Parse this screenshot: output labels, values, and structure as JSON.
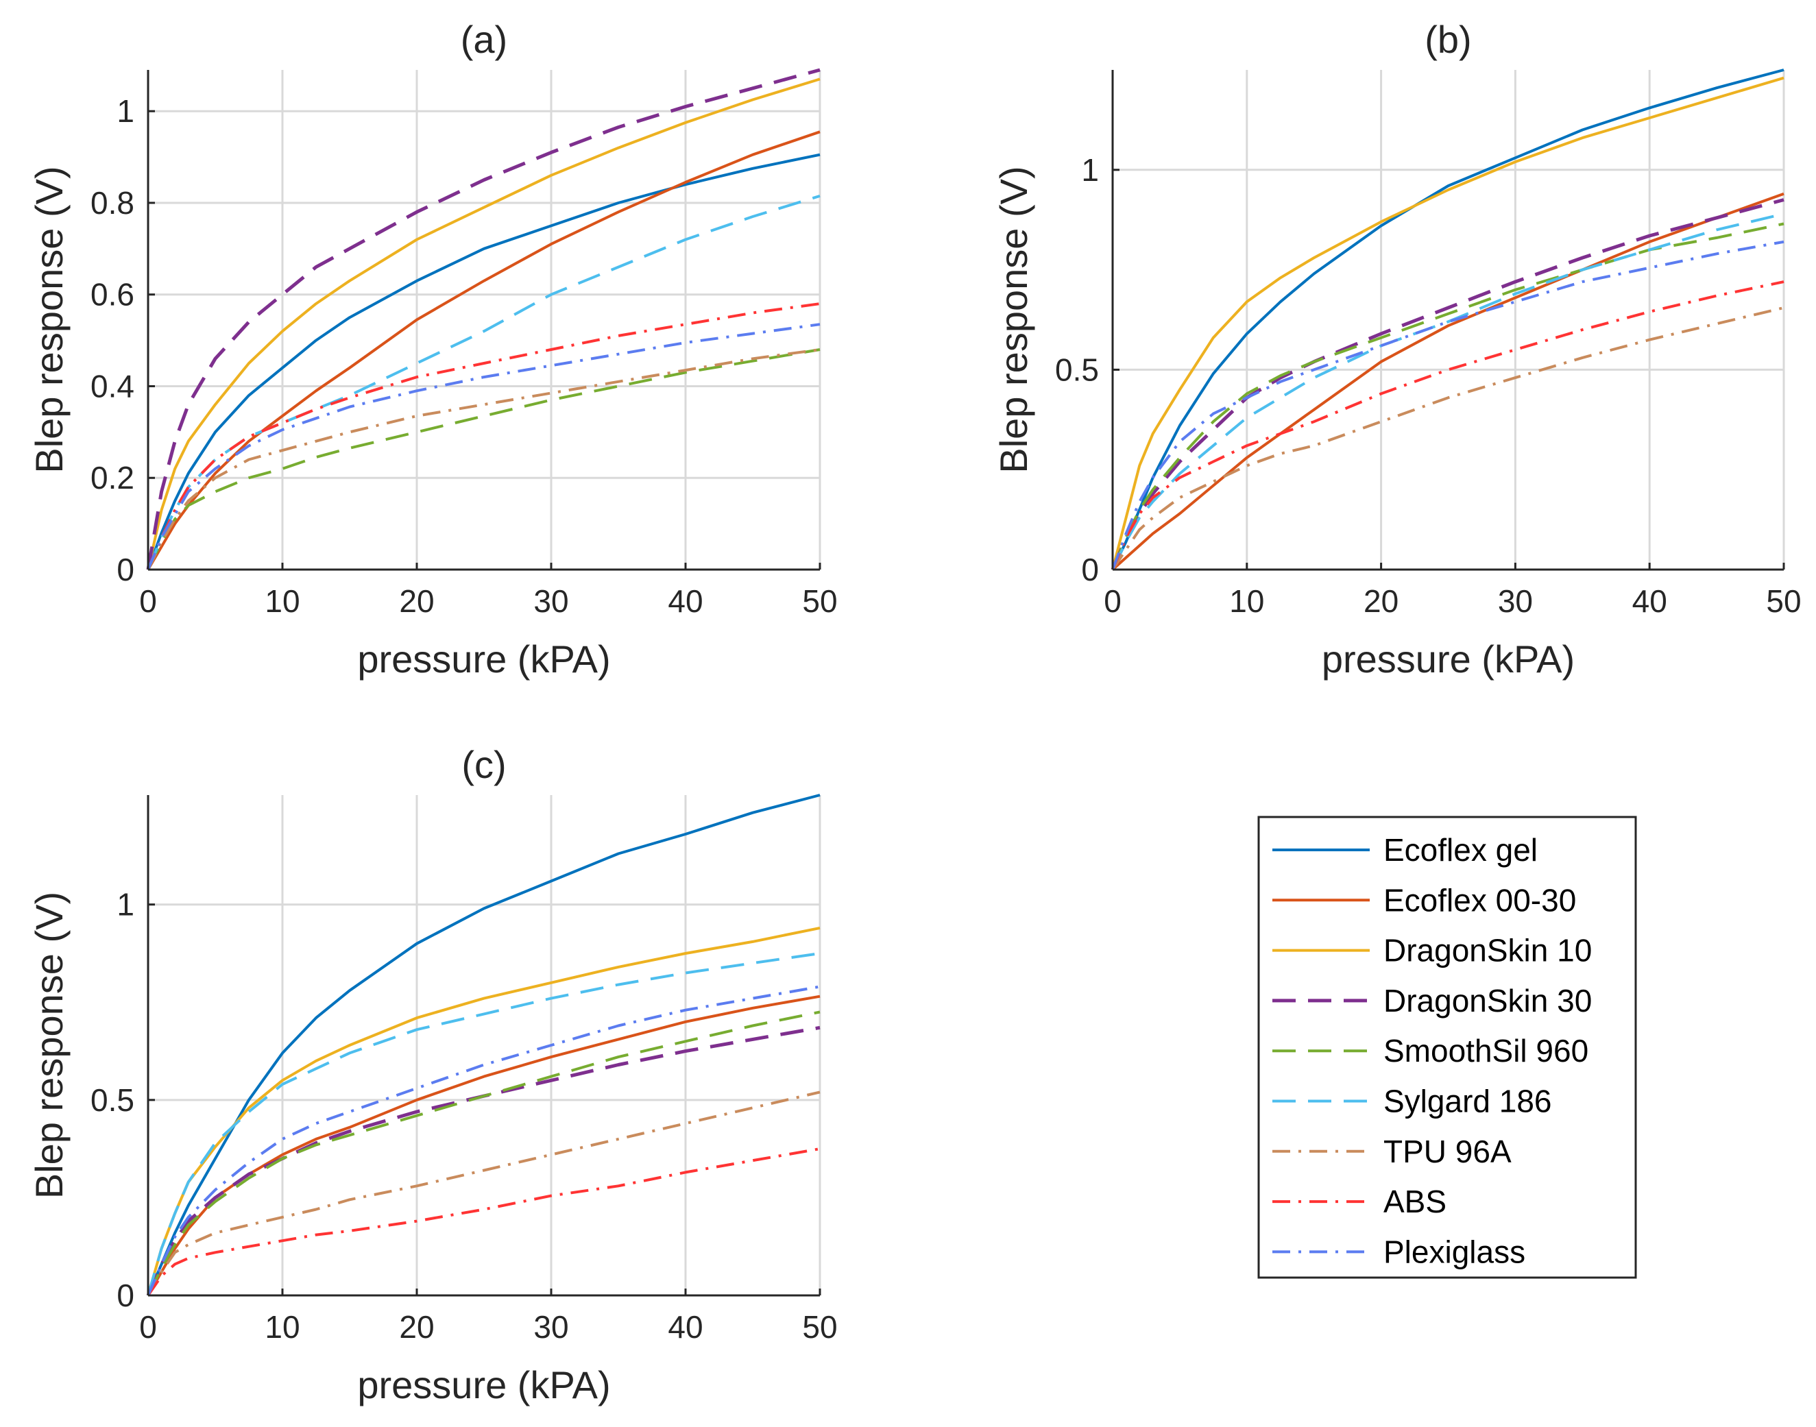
{
  "chart_data": [
    {
      "type": "line",
      "panel": "a",
      "title": "(a)",
      "xlabel": "pressure (kPA)",
      "ylabel": "Blep response (V)",
      "xlim": [
        0,
        50
      ],
      "ylim": [
        0,
        1.09
      ],
      "xticks": [
        0,
        10,
        20,
        30,
        40,
        50
      ],
      "yticks": [
        0,
        0.2,
        0.4,
        0.6,
        0.8,
        1
      ],
      "ytick_labels": [
        "0",
        "0.2",
        "0.4",
        "0.6",
        "0.8",
        "1"
      ],
      "grid": true,
      "x": [
        0,
        1,
        2,
        3,
        5,
        7.5,
        10,
        12.5,
        15,
        20,
        25,
        30,
        35,
        40,
        45,
        50
      ],
      "series": [
        {
          "name": "Ecoflex gel",
          "values": [
            0,
            0.08,
            0.15,
            0.21,
            0.3,
            0.38,
            0.44,
            0.5,
            0.55,
            0.63,
            0.7,
            0.75,
            0.8,
            0.84,
            0.875,
            0.905
          ]
        },
        {
          "name": "Ecoflex 00-30",
          "values": [
            0,
            0.05,
            0.1,
            0.14,
            0.21,
            0.28,
            0.335,
            0.39,
            0.44,
            0.545,
            0.63,
            0.71,
            0.78,
            0.845,
            0.905,
            0.955
          ]
        },
        {
          "name": "DragonSkin 10",
          "values": [
            0,
            0.13,
            0.22,
            0.28,
            0.36,
            0.45,
            0.52,
            0.58,
            0.63,
            0.72,
            0.79,
            0.86,
            0.92,
            0.975,
            1.025,
            1.07
          ]
        },
        {
          "name": "DragonSkin 30",
          "values": [
            0,
            0.17,
            0.28,
            0.36,
            0.46,
            0.54,
            0.6,
            0.66,
            0.7,
            0.78,
            0.85,
            0.91,
            0.965,
            1.01,
            1.05,
            1.09
          ]
        },
        {
          "name": "SmoothSil 960",
          "values": [
            0,
            0.06,
            0.11,
            0.14,
            0.17,
            0.2,
            0.22,
            0.245,
            0.265,
            0.3,
            0.335,
            0.37,
            0.4,
            0.43,
            0.455,
            0.48
          ]
        },
        {
          "name": "Sylgard 186",
          "values": [
            0,
            0.07,
            0.13,
            0.18,
            0.24,
            0.29,
            0.32,
            0.35,
            0.38,
            0.45,
            0.52,
            0.6,
            0.66,
            0.72,
            0.77,
            0.815
          ]
        },
        {
          "name": "TPU 96A",
          "values": [
            0,
            0.06,
            0.11,
            0.15,
            0.2,
            0.24,
            0.26,
            0.28,
            0.3,
            0.335,
            0.36,
            0.385,
            0.41,
            0.435,
            0.46,
            0.48
          ]
        },
        {
          "name": "ABS",
          "values": [
            0,
            0.07,
            0.13,
            0.18,
            0.24,
            0.29,
            0.32,
            0.35,
            0.375,
            0.42,
            0.45,
            0.48,
            0.51,
            0.535,
            0.56,
            0.58
          ]
        },
        {
          "name": "Plexiglass",
          "values": [
            0,
            0.07,
            0.12,
            0.17,
            0.22,
            0.27,
            0.305,
            0.33,
            0.355,
            0.39,
            0.42,
            0.445,
            0.47,
            0.495,
            0.515,
            0.535
          ]
        }
      ]
    },
    {
      "type": "line",
      "panel": "b",
      "title": "(b)",
      "xlabel": "pressure (kPA)",
      "ylabel": "Blep response (V)",
      "xlim": [
        0,
        50
      ],
      "ylim": [
        0,
        1.25
      ],
      "xticks": [
        0,
        10,
        20,
        30,
        40,
        50
      ],
      "yticks": [
        0,
        0.5,
        1
      ],
      "ytick_labels": [
        "0",
        "0.5",
        "1"
      ],
      "grid": true,
      "x": [
        0,
        1,
        2,
        3,
        5,
        7.5,
        10,
        12.5,
        15,
        20,
        25,
        30,
        35,
        40,
        45,
        50
      ],
      "series": [
        {
          "name": "Ecoflex gel",
          "values": [
            0,
            0.07,
            0.15,
            0.23,
            0.36,
            0.49,
            0.59,
            0.67,
            0.74,
            0.86,
            0.96,
            1.03,
            1.1,
            1.155,
            1.205,
            1.25
          ]
        },
        {
          "name": "Ecoflex 00-30",
          "values": [
            0,
            0.03,
            0.06,
            0.09,
            0.14,
            0.21,
            0.28,
            0.34,
            0.4,
            0.52,
            0.61,
            0.68,
            0.75,
            0.82,
            0.88,
            0.94
          ]
        },
        {
          "name": "DragonSkin 10",
          "values": [
            0,
            0.13,
            0.26,
            0.34,
            0.45,
            0.58,
            0.67,
            0.73,
            0.78,
            0.87,
            0.95,
            1.02,
            1.08,
            1.13,
            1.18,
            1.23
          ]
        },
        {
          "name": "DragonSkin 30",
          "values": [
            0,
            0.08,
            0.14,
            0.19,
            0.27,
            0.35,
            0.43,
            0.48,
            0.52,
            0.59,
            0.655,
            0.72,
            0.78,
            0.835,
            0.88,
            0.925
          ]
        },
        {
          "name": "SmoothSil 960",
          "values": [
            0,
            0.08,
            0.15,
            0.2,
            0.28,
            0.37,
            0.44,
            0.485,
            0.52,
            0.58,
            0.64,
            0.7,
            0.75,
            0.8,
            0.83,
            0.865
          ]
        },
        {
          "name": "Sylgard 186",
          "values": [
            0,
            0.07,
            0.13,
            0.17,
            0.24,
            0.31,
            0.38,
            0.43,
            0.48,
            0.56,
            0.62,
            0.69,
            0.75,
            0.8,
            0.85,
            0.89
          ]
        },
        {
          "name": "TPU 96A",
          "values": [
            0,
            0.05,
            0.1,
            0.13,
            0.18,
            0.22,
            0.26,
            0.29,
            0.31,
            0.37,
            0.43,
            0.48,
            0.53,
            0.575,
            0.615,
            0.655
          ]
        },
        {
          "name": "ABS",
          "values": [
            0,
            0.08,
            0.14,
            0.18,
            0.23,
            0.27,
            0.31,
            0.34,
            0.37,
            0.44,
            0.5,
            0.55,
            0.6,
            0.645,
            0.685,
            0.72
          ]
        },
        {
          "name": "Plexiglass",
          "values": [
            0,
            0.09,
            0.17,
            0.23,
            0.32,
            0.39,
            0.43,
            0.47,
            0.5,
            0.56,
            0.62,
            0.67,
            0.72,
            0.755,
            0.79,
            0.82
          ]
        }
      ]
    },
    {
      "type": "line",
      "panel": "c",
      "title": "(c)",
      "xlabel": "pressure (kPA)",
      "ylabel": "Blep response (V)",
      "xlim": [
        0,
        50
      ],
      "ylim": [
        0,
        1.28
      ],
      "xticks": [
        0,
        10,
        20,
        30,
        40,
        50
      ],
      "yticks": [
        0,
        0.5,
        1
      ],
      "ytick_labels": [
        "0",
        "0.5",
        "1"
      ],
      "grid": true,
      "x": [
        0,
        1,
        2,
        3,
        5,
        7.5,
        10,
        12.5,
        15,
        20,
        25,
        30,
        35,
        40,
        45,
        50
      ],
      "series": [
        {
          "name": "Ecoflex gel",
          "values": [
            0,
            0.08,
            0.16,
            0.23,
            0.35,
            0.5,
            0.62,
            0.71,
            0.78,
            0.9,
            0.99,
            1.06,
            1.13,
            1.18,
            1.235,
            1.28
          ]
        },
        {
          "name": "Ecoflex 00-30",
          "values": [
            0,
            0.06,
            0.12,
            0.17,
            0.25,
            0.31,
            0.36,
            0.4,
            0.43,
            0.5,
            0.56,
            0.61,
            0.655,
            0.7,
            0.735,
            0.765
          ]
        },
        {
          "name": "DragonSkin 10",
          "values": [
            0,
            0.12,
            0.21,
            0.29,
            0.38,
            0.48,
            0.55,
            0.6,
            0.64,
            0.71,
            0.76,
            0.8,
            0.84,
            0.875,
            0.905,
            0.94
          ]
        },
        {
          "name": "DragonSkin 30",
          "values": [
            0,
            0.08,
            0.14,
            0.19,
            0.25,
            0.31,
            0.35,
            0.39,
            0.42,
            0.47,
            0.51,
            0.55,
            0.59,
            0.625,
            0.655,
            0.685
          ]
        },
        {
          "name": "SmoothSil 960",
          "values": [
            0,
            0.07,
            0.13,
            0.18,
            0.24,
            0.3,
            0.35,
            0.385,
            0.41,
            0.46,
            0.51,
            0.56,
            0.61,
            0.65,
            0.69,
            0.725
          ]
        },
        {
          "name": "Sylgard 186",
          "values": [
            0,
            0.12,
            0.21,
            0.29,
            0.39,
            0.47,
            0.54,
            0.58,
            0.62,
            0.68,
            0.72,
            0.76,
            0.795,
            0.825,
            0.85,
            0.875
          ]
        },
        {
          "name": "TPU 96A",
          "values": [
            0,
            0.06,
            0.11,
            0.13,
            0.16,
            0.18,
            0.2,
            0.22,
            0.245,
            0.28,
            0.32,
            0.36,
            0.4,
            0.44,
            0.48,
            0.52
          ]
        },
        {
          "name": "ABS",
          "values": [
            0,
            0.05,
            0.08,
            0.095,
            0.11,
            0.125,
            0.14,
            0.155,
            0.165,
            0.19,
            0.22,
            0.255,
            0.28,
            0.315,
            0.345,
            0.375
          ]
        },
        {
          "name": "Plexiglass",
          "values": [
            0,
            0.08,
            0.15,
            0.2,
            0.27,
            0.34,
            0.4,
            0.44,
            0.47,
            0.53,
            0.59,
            0.64,
            0.69,
            0.73,
            0.76,
            0.79
          ]
        }
      ]
    }
  ],
  "legend": {
    "placement": "bottom-right",
    "items": [
      {
        "name": "Ecoflex gel",
        "color": "#0072BD",
        "style": "solid"
      },
      {
        "name": "Ecoflex 00-30",
        "color": "#D95319",
        "style": "solid"
      },
      {
        "name": "DragonSkin 10",
        "color": "#EDB120",
        "style": "solid"
      },
      {
        "name": "DragonSkin 30",
        "color": "#7E2F8E",
        "style": "dashed"
      },
      {
        "name": "SmoothSil 960",
        "color": "#77AC30",
        "style": "dashed"
      },
      {
        "name": "Sylgard 186",
        "color": "#4DBEEE",
        "style": "dashed"
      },
      {
        "name": "TPU 96A",
        "color": "#C98B5C",
        "style": "dashdot"
      },
      {
        "name": "ABS",
        "color": "#FF3333",
        "style": "dashdot"
      },
      {
        "name": "Plexiglass",
        "color": "#5B7CF0",
        "style": "dashdot"
      }
    ]
  }
}
